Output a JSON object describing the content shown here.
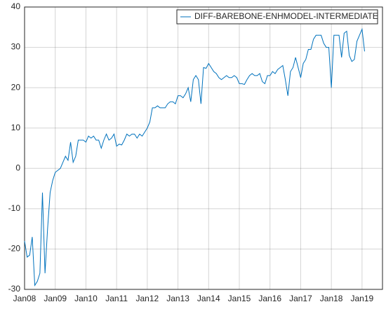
{
  "chart_data": {
    "type": "line",
    "x": [
      "2008-01",
      "2008-02",
      "2008-03",
      "2008-04",
      "2008-05",
      "2008-06",
      "2008-07",
      "2008-08",
      "2008-09",
      "2008-10",
      "2008-11",
      "2008-12",
      "2009-01",
      "2009-02",
      "2009-03",
      "2009-04",
      "2009-05",
      "2009-06",
      "2009-07",
      "2009-08",
      "2009-09",
      "2009-10",
      "2009-11",
      "2009-12",
      "2010-01",
      "2010-02",
      "2010-03",
      "2010-04",
      "2010-05",
      "2010-06",
      "2010-07",
      "2010-08",
      "2010-09",
      "2010-10",
      "2010-11",
      "2010-12",
      "2011-01",
      "2011-02",
      "2011-03",
      "2011-04",
      "2011-05",
      "2011-06",
      "2011-07",
      "2011-08",
      "2011-09",
      "2011-10",
      "2011-11",
      "2011-12",
      "2012-01",
      "2012-02",
      "2012-03",
      "2012-04",
      "2012-05",
      "2012-06",
      "2012-07",
      "2012-08",
      "2012-09",
      "2012-10",
      "2012-11",
      "2012-12",
      "2013-01",
      "2013-02",
      "2013-03",
      "2013-04",
      "2013-05",
      "2013-06",
      "2013-07",
      "2013-08",
      "2013-09",
      "2013-10",
      "2013-11",
      "2013-12",
      "2014-01",
      "2014-02",
      "2014-03",
      "2014-04",
      "2014-05",
      "2014-06",
      "2014-07",
      "2014-08",
      "2014-09",
      "2014-10",
      "2014-11",
      "2014-12",
      "2015-01",
      "2015-02",
      "2015-03",
      "2015-04",
      "2015-05",
      "2015-06",
      "2015-07",
      "2015-08",
      "2015-09",
      "2015-10",
      "2015-11",
      "2015-12",
      "2016-01",
      "2016-02",
      "2016-03",
      "2016-04",
      "2016-05",
      "2016-06",
      "2016-07",
      "2016-08",
      "2016-09",
      "2016-10",
      "2016-11",
      "2016-12",
      "2017-01",
      "2017-02",
      "2017-03",
      "2017-04",
      "2017-05",
      "2017-06",
      "2017-07",
      "2017-08",
      "2017-09",
      "2017-10",
      "2017-11",
      "2017-12",
      "2018-01",
      "2018-02",
      "2018-03",
      "2018-04",
      "2018-05",
      "2018-06",
      "2018-07",
      "2018-08",
      "2018-09",
      "2018-10",
      "2018-11",
      "2018-12",
      "2019-01",
      "2019-02"
    ],
    "series": [
      {
        "name": "DIFF-BAREBONE-ENHMODEL-INTERMEDIATE",
        "color": "#0072bd",
        "values": [
          -18,
          -22,
          -21.5,
          -17,
          -29,
          -28,
          -26,
          -6,
          -26,
          -15,
          -6,
          -3,
          -1,
          -0.5,
          0,
          1.5,
          3,
          2,
          6.5,
          1.5,
          3,
          7,
          7,
          7,
          6.5,
          8,
          7.5,
          8,
          7,
          7,
          5,
          7,
          8.5,
          7,
          7.5,
          8.5,
          5.5,
          6,
          5.8,
          7,
          8.5,
          8,
          8.5,
          8.5,
          7.5,
          8.5,
          8,
          9,
          10,
          11.5,
          15,
          15,
          15.5,
          15,
          15,
          15,
          16,
          16.5,
          16.5,
          16,
          18,
          18,
          17.5,
          18.5,
          20,
          16.5,
          22,
          23,
          22,
          16,
          25,
          24.8,
          26,
          25,
          24,
          23.5,
          22.5,
          22,
          22.5,
          23,
          22.5,
          22.5,
          23,
          22.5,
          21,
          21,
          20.8,
          22,
          23,
          23.5,
          23,
          23,
          23.5,
          21.5,
          21,
          23,
          23,
          24,
          23.5,
          24.5,
          25,
          25.5,
          22,
          18,
          24,
          25,
          27.5,
          25,
          22.5,
          26,
          27,
          29.5,
          29.5,
          32,
          33,
          33,
          33,
          31,
          30,
          30,
          20,
          33,
          33,
          33,
          27.5,
          33.5,
          34,
          28,
          26.5,
          27,
          31.5,
          33,
          34.5,
          29
        ]
      }
    ],
    "xlim": [
      "2008-01",
      "2019-09"
    ],
    "xticks": [
      {
        "value": "2008-01",
        "label": "Jan08"
      },
      {
        "value": "2009-01",
        "label": "Jan09"
      },
      {
        "value": "2010-01",
        "label": "Jan10"
      },
      {
        "value": "2011-01",
        "label": "Jan11"
      },
      {
        "value": "2012-01",
        "label": "Jan12"
      },
      {
        "value": "2013-01",
        "label": "Jan13"
      },
      {
        "value": "2014-01",
        "label": "Jan14"
      },
      {
        "value": "2015-01",
        "label": "Jan15"
      },
      {
        "value": "2016-01",
        "label": "Jan16"
      },
      {
        "value": "2017-01",
        "label": "Jan17"
      },
      {
        "value": "2018-01",
        "label": "Jan18"
      },
      {
        "value": "2019-01",
        "label": "Jan19"
      }
    ],
    "ylim": [
      -30,
      40
    ],
    "yticks": [
      -30,
      -20,
      -10,
      0,
      10,
      20,
      30,
      40
    ],
    "grid": true,
    "legend": "top-right"
  }
}
